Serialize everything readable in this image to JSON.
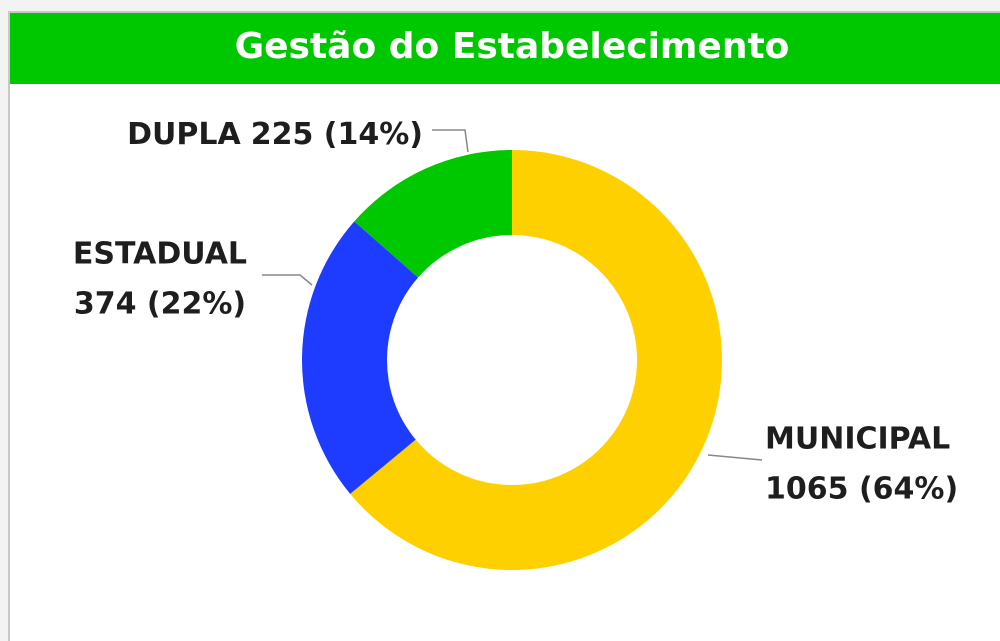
{
  "chart_data": {
    "type": "donut",
    "title": "Gestão do Estabelecimento",
    "categories": [
      "MUNICIPAL",
      "ESTADUAL",
      "DUPLA"
    ],
    "values": [
      1065,
      374,
      225
    ],
    "value_labels": [
      "1065 (64%)",
      "374 (22%)",
      "225 (14%)"
    ],
    "colors": [
      "#ffd000",
      "#1e3cff",
      "#00c800"
    ]
  }
}
